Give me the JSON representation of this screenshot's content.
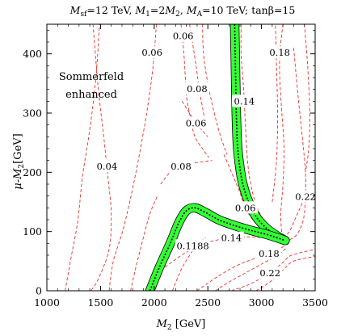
{
  "chart_data": {
    "type": "contour",
    "title": "M_sf=12 TeV, M_1=2M_2, M_A=10 TeV; tanβ=15",
    "title_parts": {
      "m_sf": "M",
      "m_sf_sub": "sf",
      "part1": "=12 TeV, ",
      "m1": "M",
      "m1_sub": "1",
      "part2": "=2",
      "m2": "M",
      "m2_sub": "2",
      "part3": ", ",
      "ma": "M",
      "ma_sub": "A",
      "part4": "=10 TeV; tanβ=15"
    },
    "xlabel": "M_2 [GeV]",
    "xlabel_parts": {
      "main": "M",
      "sub": "2",
      "rest": " [GeV]"
    },
    "ylabel": "μ-M_2 [GeV]",
    "ylabel_parts": {
      "main": "μ-M",
      "sub": "2",
      "rest": "[GeV]"
    },
    "xlim": [
      1000,
      3500
    ],
    "ylim": [
      0,
      450
    ],
    "xticks": [
      "1000",
      "1500",
      "2000",
      "2500",
      "3000",
      "3500"
    ],
    "yticks": [
      "0",
      "100",
      "200",
      "300",
      "400"
    ],
    "annotation": [
      "Sommerfeld",
      "enhanced"
    ],
    "colors": {
      "contour": "#e8322e",
      "band_fill": "#33ff33",
      "band_edge": "#000000"
    },
    "contour_lines": [
      {
        "label": "0.04",
        "label_at": [
          1560,
          210
        ],
        "points": [
          [
            1430,
            450
          ],
          [
            1480,
            340
          ],
          [
            1530,
            260
          ],
          [
            1570,
            190
          ],
          [
            1600,
            130
          ],
          [
            1580,
            70
          ],
          [
            1480,
            20
          ],
          [
            1410,
            0
          ]
        ]
      },
      {
        "label": "0.06",
        "label_at": [
          1980,
          402
        ],
        "points": [
          [
            2020,
            450
          ],
          [
            1990,
            380
          ],
          [
            1930,
            300
          ],
          [
            1830,
            200
          ],
          [
            1720,
            110
          ],
          [
            1620,
            50
          ],
          [
            1580,
            0
          ]
        ]
      },
      {
        "label": "0.06",
        "label_at": [
          2270,
          430
        ],
        "points": [
          [
            2250,
            450
          ],
          [
            2275,
            405
          ],
          [
            2290,
            360
          ],
          [
            2300,
            330
          ],
          [
            2340,
            290
          ],
          [
            2380,
            260
          ],
          [
            2450,
            240
          ],
          [
            2510,
            225
          ]
        ]
      },
      {
        "label": "0.08",
        "label_at": [
          2400,
          341
        ],
        "points": [
          [
            2330,
            450
          ],
          [
            2390,
            380
          ],
          [
            2420,
            340
          ],
          [
            2460,
            300
          ],
          [
            2480,
            280
          ]
        ]
      },
      {
        "label": "0.06",
        "label_at": [
          2390,
          283
        ],
        "points": [
          [
            2260,
            320
          ],
          [
            2330,
            300
          ],
          [
            2390,
            283
          ],
          [
            2450,
            270
          ],
          [
            2500,
            260
          ]
        ]
      },
      {
        "label": "0.08",
        "label_at": [
          2250,
          210
        ],
        "points": [
          [
            2060,
            180
          ],
          [
            2150,
            200
          ],
          [
            2250,
            210
          ],
          [
            2350,
            215
          ],
          [
            2460,
            218
          ],
          [
            2540,
            220
          ]
        ]
      },
      {
        "label": "0.06",
        "label_at": [
          2850,
          140
        ],
        "points": [
          [
            2650,
            230
          ],
          [
            2720,
            200
          ],
          [
            2790,
            170
          ],
          [
            2850,
            140
          ],
          [
            2920,
            120
          ],
          [
            3000,
            110
          ],
          [
            3080,
            100
          ],
          [
            3180,
            88
          ]
        ]
      },
      {
        "label": "0.14",
        "label_at": [
          2840,
          320
        ],
        "points": [
          [
            2810,
            450
          ],
          [
            2810,
            400
          ],
          [
            2830,
            350
          ],
          [
            2840,
            320
          ],
          [
            2850,
            280
          ],
          [
            2870,
            220
          ],
          [
            2900,
            180
          ],
          [
            2960,
            140
          ],
          [
            3060,
            110
          ],
          [
            3180,
            90
          ]
        ]
      },
      {
        "label": "0.18",
        "label_at": [
          3170,
          402
        ],
        "points": [
          [
            3200,
            450
          ],
          [
            3180,
            420
          ],
          [
            3170,
            402
          ],
          [
            3170,
            360
          ],
          [
            3190,
            300
          ],
          [
            3210,
            240
          ],
          [
            3200,
            180
          ],
          [
            3180,
            130
          ],
          [
            3190,
            95
          ]
        ]
      },
      {
        "label": "0.22",
        "label_at": [
          3410,
          159
        ],
        "points": [
          [
            3300,
            410
          ],
          [
            3340,
            330
          ],
          [
            3380,
            260
          ],
          [
            3410,
            200
          ],
          [
            3410,
            159
          ],
          [
            3390,
            120
          ],
          [
            3330,
            95
          ],
          [
            3250,
            85
          ]
        ]
      },
      {
        "label": "0.14",
        "label_at": [
          2720,
          89
        ],
        "points": [
          [
            2100,
            40
          ],
          [
            2300,
            65
          ],
          [
            2500,
            82
          ],
          [
            2720,
            89
          ],
          [
            2900,
            91
          ],
          [
            3100,
            88
          ],
          [
            3220,
            85
          ]
        ]
      },
      {
        "label": "0.18",
        "label_at": [
          3070,
          63
        ],
        "points": [
          [
            2400,
            0
          ],
          [
            2600,
            25
          ],
          [
            2800,
            45
          ],
          [
            3070,
            63
          ],
          [
            3180,
            72
          ],
          [
            3240,
            80
          ]
        ]
      },
      {
        "label": "0.22",
        "label_at": [
          3080,
          30
        ],
        "points": [
          [
            2720,
            0
          ],
          [
            2900,
            12
          ],
          [
            3080,
            30
          ],
          [
            3200,
            48
          ],
          [
            3280,
            60
          ],
          [
            3500,
            70
          ]
        ]
      },
      {
        "label": "",
        "label_at": null,
        "points": [
          [
            1170,
            0
          ],
          [
            1230,
            60
          ],
          [
            1290,
            120
          ],
          [
            1330,
            190
          ],
          [
            1390,
            260
          ],
          [
            1440,
            330
          ],
          [
            1470,
            390
          ],
          [
            1490,
            450
          ]
        ]
      },
      {
        "label": "",
        "label_at": null,
        "points": [
          [
            1780,
            0
          ],
          [
            1830,
            40
          ],
          [
            1900,
            90
          ],
          [
            1960,
            130
          ],
          [
            2030,
            160
          ]
        ]
      },
      {
        "label": "",
        "label_at": null,
        "points": [
          [
            2170,
            0
          ],
          [
            2250,
            35
          ],
          [
            2330,
            60
          ],
          [
            2410,
            80
          ],
          [
            2480,
            90
          ]
        ]
      },
      {
        "label": "",
        "label_at": null,
        "points": [
          [
            2570,
            0
          ],
          [
            2700,
            15
          ],
          [
            2850,
            30
          ],
          [
            3000,
            45
          ],
          [
            3150,
            60
          ],
          [
            3230,
            72
          ]
        ]
      },
      {
        "label": "",
        "label_at": null,
        "points": [
          [
            2950,
            0
          ],
          [
            3080,
            15
          ],
          [
            3200,
            35
          ],
          [
            3300,
            50
          ],
          [
            3500,
            58
          ]
        ]
      },
      {
        "label": "",
        "label_at": null,
        "points": [
          [
            3100,
            150
          ],
          [
            3140,
            220
          ],
          [
            3150,
            300
          ],
          [
            3140,
            380
          ],
          [
            3130,
            450
          ]
        ]
      },
      {
        "label": "",
        "label_at": null,
        "points": [
          [
            3400,
            450
          ],
          [
            3430,
            380
          ],
          [
            3450,
            300
          ],
          [
            3440,
            240
          ],
          [
            3410,
            200
          ]
        ]
      },
      {
        "label": "",
        "label_at": null,
        "points": [
          [
            3200,
            90
          ],
          [
            3260,
            100
          ],
          [
            3310,
            120
          ],
          [
            3360,
            140
          ],
          [
            3420,
            165
          ]
        ]
      },
      {
        "label": "",
        "label_at": null,
        "points": [
          [
            2450,
            450
          ],
          [
            2460,
            400
          ],
          [
            2500,
            350
          ],
          [
            2560,
            300
          ],
          [
            2620,
            260
          ],
          [
            2680,
            230
          ]
        ]
      }
    ],
    "relic_band": {
      "label": "0.1188",
      "label_at": [
        2360,
        76
      ],
      "upper_branch": [
        [
          2750,
          450
        ],
        [
          2755,
          400
        ],
        [
          2760,
          350
        ],
        [
          2765,
          300
        ],
        [
          2775,
          250
        ],
        [
          2790,
          220
        ],
        [
          2820,
          185
        ],
        [
          2870,
          155
        ],
        [
          2950,
          125
        ],
        [
          3050,
          105
        ],
        [
          3150,
          92
        ],
        [
          3220,
          85
        ]
      ],
      "lower_branch": [
        [
          1960,
          0
        ],
        [
          2050,
          40
        ],
        [
          2150,
          80
        ],
        [
          2230,
          115
        ],
        [
          2300,
          135
        ],
        [
          2380,
          140
        ],
        [
          2480,
          132
        ],
        [
          2600,
          120
        ],
        [
          2750,
          110
        ],
        [
          2900,
          102
        ],
        [
          3050,
          95
        ],
        [
          3220,
          85
        ]
      ],
      "half_width": 5
    }
  }
}
